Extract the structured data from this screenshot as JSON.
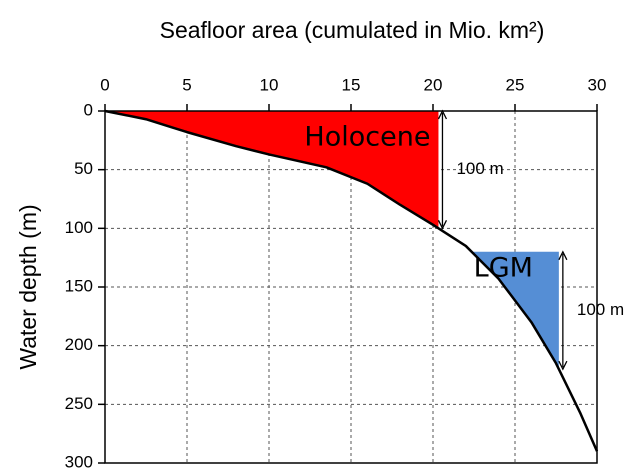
{
  "chart_data": {
    "type": "line",
    "xlabel": "Seafloor area (cumulated in Mio. km²)",
    "ylabel": "Water depth (m)",
    "xlim": [
      0,
      30
    ],
    "xticks": [
      0,
      5,
      10,
      15,
      20,
      25,
      30
    ],
    "ylim": [
      0,
      300
    ],
    "yticks": [
      0,
      50,
      100,
      150,
      200,
      250,
      300
    ],
    "y_inverted": true,
    "x_axis_position": "top",
    "grid": true,
    "series": [
      {
        "color": "#000000",
        "x": [
          0,
          2.5,
          5,
          8,
          10,
          13.5,
          16,
          18,
          20,
          22,
          24,
          26,
          27.5,
          29,
          30
        ],
        "values": [
          0,
          7,
          18,
          30,
          37,
          48,
          62,
          80,
          97,
          115,
          143,
          180,
          215,
          258,
          290
        ]
      }
    ],
    "shaded_regions": [
      {
        "name": "Holocene",
        "color": "#ff0000",
        "ylim": [
          0,
          100
        ],
        "label": "100 m"
      },
      {
        "name": "LGM",
        "color": "#558ed5",
        "ylim": [
          120,
          220
        ],
        "label": "100 m"
      }
    ]
  }
}
